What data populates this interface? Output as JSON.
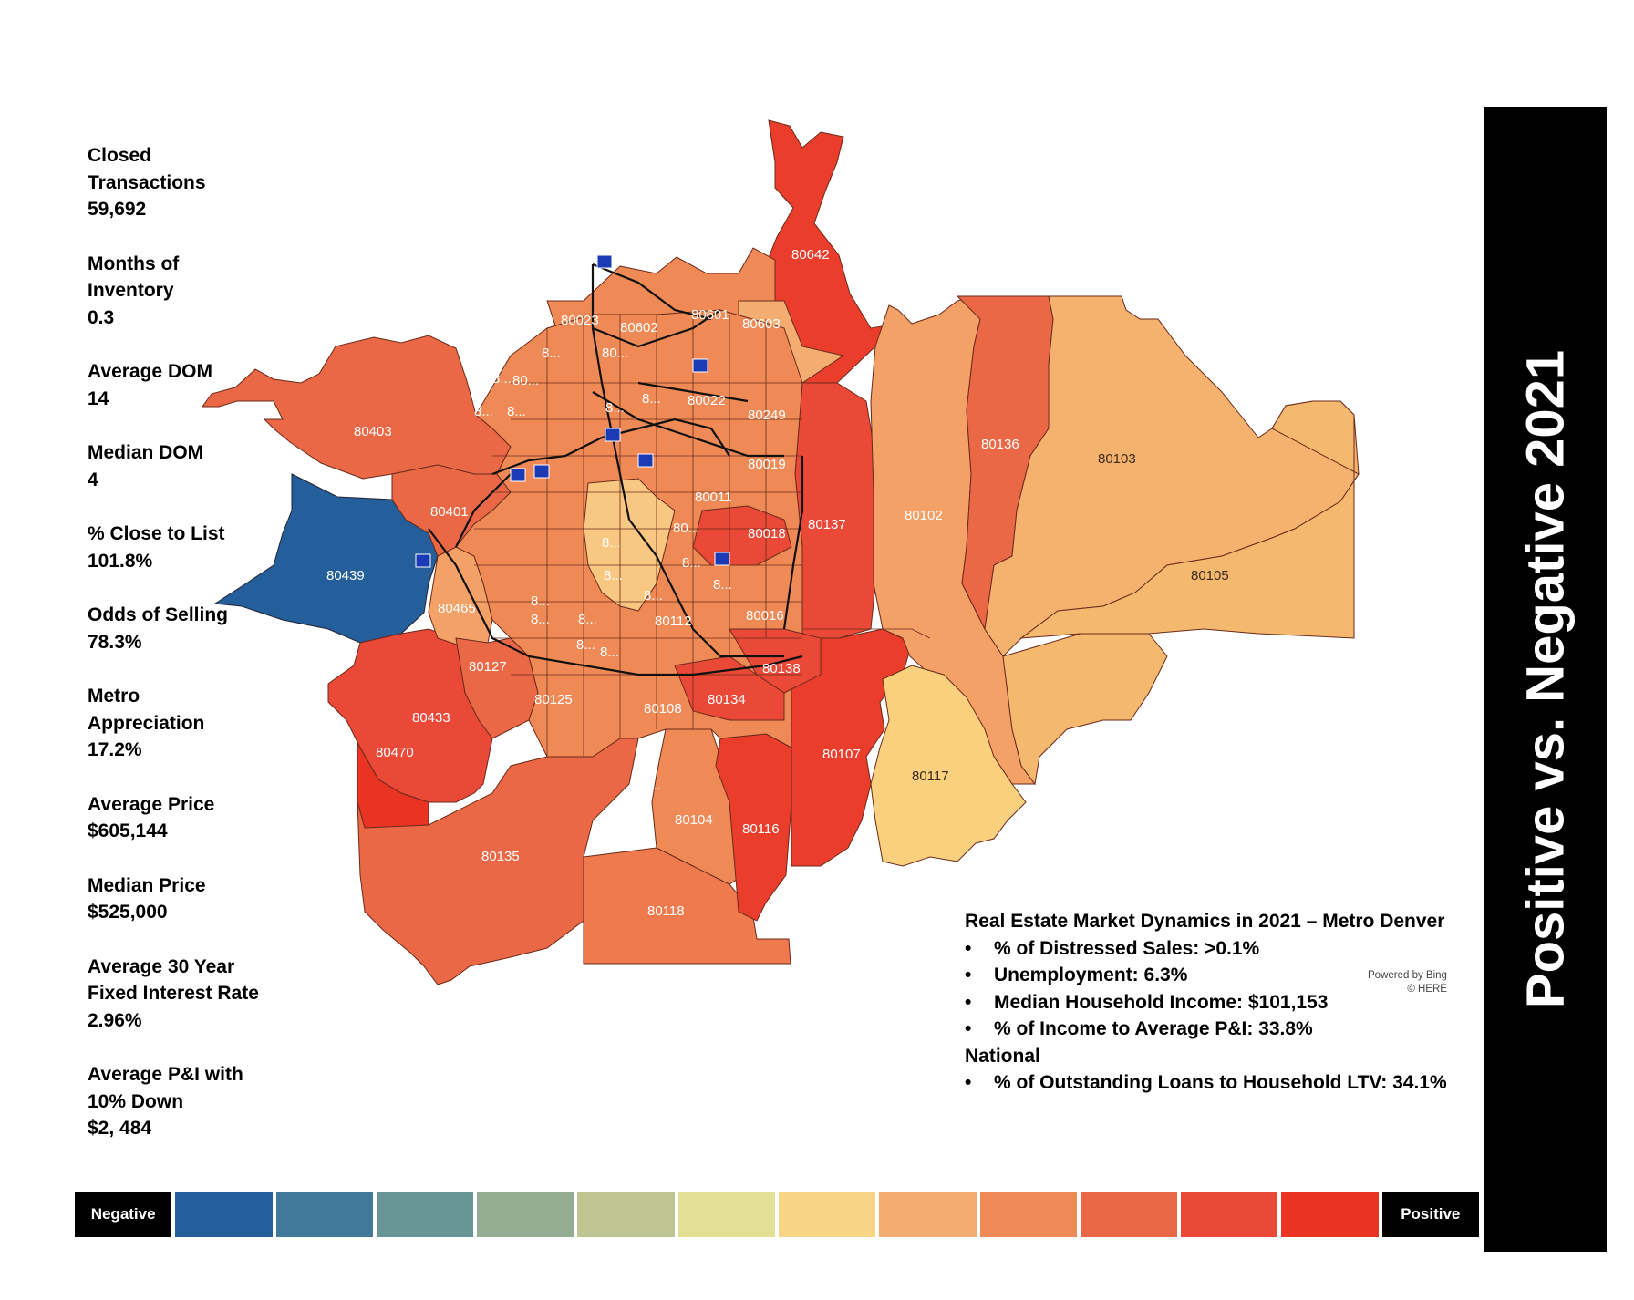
{
  "stats": [
    {
      "lines": [
        "Closed",
        "Transactions",
        "59,692"
      ]
    },
    {
      "lines": [
        "Months of",
        "Inventory",
        "0.3"
      ]
    },
    {
      "lines": [
        "Average DOM",
        "14"
      ]
    },
    {
      "lines": [
        "Median DOM",
        "4"
      ]
    },
    {
      "lines": [
        "% Close to List",
        "101.8%"
      ]
    },
    {
      "lines": [
        "Odds of Selling",
        "78.3%"
      ]
    },
    {
      "lines": [
        "Metro",
        "Appreciation",
        "17.2%"
      ]
    },
    {
      "lines": [
        "Average Price",
        "$605,144"
      ]
    },
    {
      "lines": [
        "Median Price",
        "$525,000"
      ]
    },
    {
      "lines": [
        "Average 30 Year",
        "Fixed Interest Rate",
        "2.96%"
      ]
    },
    {
      "lines": [
        "Average P&I with",
        "10% Down",
        "$2, 484"
      ]
    }
  ],
  "banner": {
    "title": "Positive vs. Negative 2021"
  },
  "dynamics": {
    "heading": "Real Estate Market Dynamics in 2021 – Metro Denver",
    "bullets": [
      "% of Distressed Sales: >0.1%",
      "Unemployment: 6.3%",
      "Median Household Income: $101,153",
      "% of Income to Average P&I: 33.8%"
    ],
    "national_heading": "National",
    "national_bullets": [
      "% of Outstanding Loans to Household LTV:  34.1%"
    ]
  },
  "attribution": {
    "line1": "Powered by Bing",
    "line2": "© HERE"
  },
  "legend": {
    "negative_label": "Negative",
    "positive_label": "Positive",
    "colors": [
      "#245f9b",
      "#41799a",
      "#689596",
      "#94ad92",
      "#bec592",
      "#e3df94",
      "#f8d585",
      "#f3ad70",
      "#ef8a57",
      "#eb6846",
      "#ea4938",
      "#e93323"
    ]
  },
  "map": {
    "zip_labels": [
      "80642",
      "80023",
      "80602",
      "80601",
      "80603",
      "80022",
      "80249",
      "80403",
      "80136",
      "80103",
      "80019",
      "80011",
      "80401",
      "80102",
      "80137",
      "80018",
      "80439",
      "80105",
      "80016",
      "80465",
      "80112",
      "80127",
      "80138",
      "80125",
      "80108",
      "80134",
      "80433",
      "80107",
      "80470",
      "80117",
      "80104",
      "80116",
      "80135",
      "80118",
      "8...",
      "80...",
      "8...",
      "8...",
      "8...",
      "80...",
      "8...",
      "8...",
      "8...",
      "80...",
      "8...",
      "8...",
      "8...",
      "8...",
      "8...",
      "8...",
      "8...",
      "8...",
      "8...",
      "8..."
    ]
  }
}
